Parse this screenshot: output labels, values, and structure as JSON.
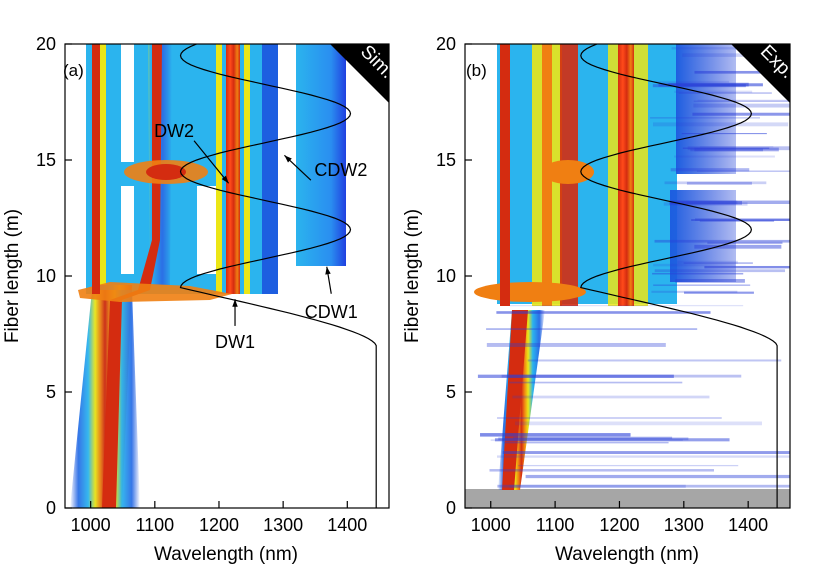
{
  "chart_data": [
    {
      "type": "heatmap",
      "panel_label": "(a)",
      "corner_label": "Sim.",
      "xlabel": "Wavelength (nm)",
      "ylabel": "Fiber length (m)",
      "xlim": [
        960,
        1465
      ],
      "ylim": [
        0,
        20
      ],
      "xticks": [
        1000,
        1100,
        1200,
        1300,
        1400
      ],
      "yticks": [
        0,
        5,
        10,
        15,
        20
      ],
      "annotations": [
        {
          "text": "DW2",
          "x": 1130,
          "y": 16.0,
          "arrow_to": [
            1215,
            14.0
          ]
        },
        {
          "text": "CDW2",
          "x": 1390,
          "y": 14.3,
          "arrow_to": [
            1302,
            15.2
          ]
        },
        {
          "text": "DW1",
          "x": 1225,
          "y": 6.9,
          "arrow_to": [
            1225,
            9.0
          ]
        },
        {
          "text": "CDW1",
          "x": 1375,
          "y": 8.2,
          "arrow_to": [
            1368,
            10.4
          ]
        }
      ],
      "zero_dispersion_profile": {
        "length_points_m": [
          0,
          7,
          8.5,
          9.5,
          12,
          14.5,
          17,
          19.5,
          20
        ],
        "wavelength_points_nm": [
          1445,
          1445,
          1200,
          1140,
          1405,
          1140,
          1405,
          1140,
          1160
        ]
      }
    },
    {
      "type": "heatmap",
      "panel_label": "(b)",
      "corner_label": "Exp.",
      "xlabel": "Wavelength (nm)",
      "ylabel": "Fiber length (m)",
      "xlim": [
        960,
        1465
      ],
      "ylim": [
        0,
        20
      ],
      "xticks": [
        1000,
        1100,
        1200,
        1300,
        1400
      ],
      "yticks": [
        0,
        5,
        10,
        15,
        20
      ],
      "annotations": [],
      "zero_dispersion_profile": {
        "length_points_m": [
          0,
          7,
          8.5,
          9.5,
          12,
          14.5,
          17,
          19.5,
          20
        ],
        "wavelength_points_nm": [
          1445,
          1445,
          1200,
          1140,
          1405,
          1140,
          1405,
          1140,
          1160
        ]
      }
    }
  ],
  "colors": {
    "red": "#d42c10",
    "orange": "#f07f12",
    "yellow": "#ece616",
    "cyan": "#2bb4ee",
    "blue": "#1f6fe6",
    "navy": "#2937d8",
    "gray_band": "#a6a6a6",
    "axis": "#000000"
  }
}
